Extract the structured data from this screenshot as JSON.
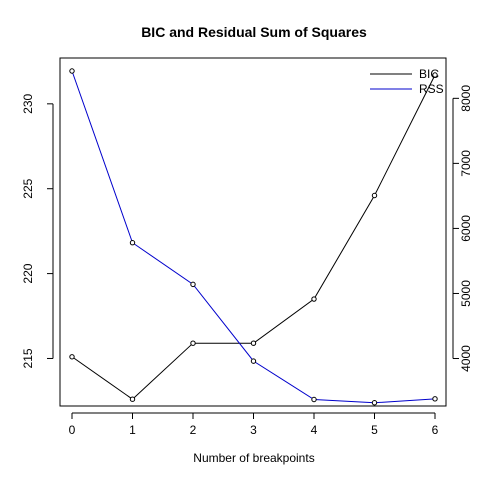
{
  "chart_data": {
    "type": "line",
    "title": "BIC and Residual Sum of Squares",
    "xlabel": "Number of breakpoints",
    "ylabel_left": "",
    "ylabel_right": "",
    "x": [
      0,
      1,
      2,
      3,
      4,
      5,
      6
    ],
    "x_ticks": [
      "0",
      "1",
      "2",
      "3",
      "4",
      "5",
      "6"
    ],
    "left_axis": {
      "ylim": [
        212.2,
        232.7
      ],
      "ticks": [
        215,
        220,
        225,
        230
      ],
      "tick_labels": [
        "215",
        "220",
        "225",
        "230"
      ]
    },
    "right_axis": {
      "ylim": [
        3270,
        8620
      ],
      "ticks": [
        4000,
        5000,
        6000,
        7000,
        8000
      ],
      "tick_labels": [
        "4000",
        "5000",
        "6000",
        "7000",
        "8000"
      ]
    },
    "series": [
      {
        "name": "BIC",
        "axis": "left",
        "color": "#000000",
        "values": [
          215.1,
          212.6,
          215.9,
          215.9,
          218.5,
          224.6,
          231.7
        ]
      },
      {
        "name": "RSS",
        "axis": "right",
        "color": "#0000cc",
        "values": [
          8420,
          5780,
          5140,
          3960,
          3370,
          3320,
          3380
        ]
      }
    ],
    "legend": {
      "placement": "top-right",
      "entries": [
        "BIC",
        "RSS"
      ]
    },
    "grid": false
  }
}
